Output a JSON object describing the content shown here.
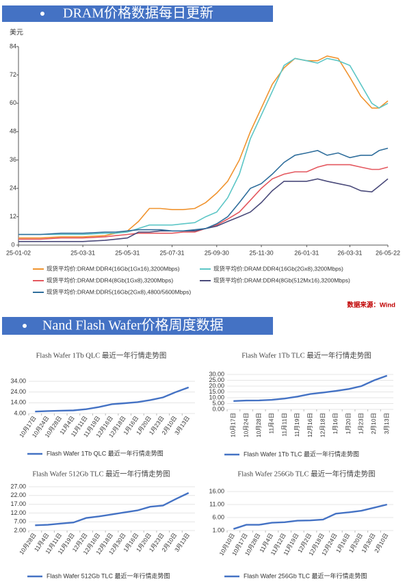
{
  "sections": [
    {
      "title": "DRAM价格数据每日更新"
    },
    {
      "title": "Nand Flash Wafer价格周度数据"
    }
  ],
  "chart_data": [
    {
      "type": "line",
      "y_label": "美元",
      "source": "数据来源：Wind",
      "x": [
        "25-01-02",
        "25-02-01",
        "25-03-01",
        "25-03-31",
        "25-04-30",
        "25-05-15",
        "25-05-31",
        "25-06-15",
        "25-06-30",
        "25-07-15",
        "25-07-31",
        "25-08-15",
        "25-08-31",
        "25-09-15",
        "25-09-30",
        "25-10-15",
        "25-10-31",
        "25-11-15",
        "25-11-30",
        "25-12-15",
        "25-12-31",
        "26-01-15",
        "26-01-31",
        "26-02-15",
        "26-02-28",
        "26-03-15",
        "26-03-31",
        "26-04-15",
        "26-04-30",
        "26-05-10",
        "26-05-22"
      ],
      "xlim": [
        "25-01-02",
        "26-05-22"
      ],
      "xticks": [
        "25-01-02",
        "25-03-31",
        "25-05-31",
        "25-07-31",
        "25-09-30",
        "25-11-30",
        "26-01-31",
        "26-03-31",
        "26-05-22"
      ],
      "ylim": [
        0,
        84
      ],
      "yticks": [
        0,
        12,
        24,
        36,
        48,
        60,
        72,
        84
      ],
      "series": [
        {
          "name": "现货平均价:DRAM:DDR4(16Gb(1Gx16),3200Mbps)",
          "color": "#f0932e",
          "values": [
            3,
            3,
            3.5,
            3.5,
            4,
            5,
            6,
            10,
            15.5,
            15.5,
            15,
            15,
            15.5,
            18,
            22,
            27,
            36,
            48,
            58,
            68,
            75,
            79,
            78,
            78,
            80,
            79,
            71,
            63,
            58,
            58,
            61
          ]
        },
        {
          "name": "现货平均价:DRAM:DDR4(16Gb(2Gx8),3200Mbps)",
          "color": "#5cc6c6",
          "values": [
            4.5,
            4.5,
            4.5,
            4.5,
            5,
            5,
            5.5,
            7,
            8.5,
            8.5,
            8.5,
            9,
            9.5,
            12,
            14,
            20,
            30,
            45,
            55,
            65,
            76,
            79,
            78,
            77,
            79,
            78,
            76,
            68,
            60,
            58,
            60
          ]
        },
        {
          "name": "现货平均价:DRAM:DDR4(8Gb(1Gx8),3200Mbps)",
          "color": "#e4575e",
          "values": [
            2.5,
            2.5,
            3,
            3,
            3.5,
            4,
            4.5,
            5,
            5,
            5,
            5,
            5.5,
            5.5,
            7,
            8.5,
            11,
            14,
            19,
            24,
            28,
            30,
            31,
            31,
            33,
            34,
            34,
            34,
            33,
            32,
            32,
            33
          ]
        },
        {
          "name": "现货平均价:DRAM:DDR4(8Gb(512Mx16),3200Mbps)",
          "color": "#4a4a7a",
          "values": [
            1.5,
            1.5,
            1.5,
            1.5,
            2,
            2.5,
            3,
            5.5,
            5.5,
            6,
            6,
            6,
            6,
            7,
            8,
            10,
            12,
            14,
            18,
            23,
            27,
            27,
            27,
            28,
            27,
            26,
            25,
            23,
            22.5,
            25,
            28
          ]
        },
        {
          "name": "现货平均价:DRAM:DDR5(16Gb(2Gx8),4800/5600Mbps)",
          "color": "#2f6e9c",
          "values": [
            4.5,
            4.5,
            5,
            5,
            5.5,
            5.5,
            6,
            6.5,
            6.5,
            6.5,
            6,
            6,
            6.5,
            7,
            9,
            12,
            18,
            24,
            26,
            30,
            35,
            38,
            39,
            40,
            38,
            39,
            37,
            38,
            38,
            40,
            41
          ]
        }
      ]
    },
    {
      "type": "line",
      "title": "Flash Wafer 1Tb QLC 最近一年行情走势图",
      "categories": [
        "10月17日",
        "10月24日",
        "10月28日",
        "11月4日",
        "11月11日",
        "11月19日",
        "12月16日",
        "12月18日",
        "1月16日",
        "1月20日",
        "1月23日",
        "2月10日",
        "3月13日"
      ],
      "ylim": [
        4,
        34
      ],
      "yticks": [
        {
          "value": 4,
          "label": "4.00"
        },
        {
          "value": 14,
          "label": "14.00"
        },
        {
          "value": 24,
          "label": "24.00"
        },
        {
          "value": 34,
          "label": "34.00"
        }
      ],
      "series": [
        {
          "name": "Flash Wafer 1Tb QLC 最近一年行情走势图",
          "color": "#4472c4",
          "values": [
            5.8,
            6.3,
            6.6,
            6.9,
            8,
            10,
            12.7,
            13.6,
            14.6,
            16.5,
            19,
            24,
            28.3
          ]
        }
      ]
    },
    {
      "type": "line",
      "title": "Flash Wafer 1Tb TLC 最近一年行情走势图",
      "categories": [
        "10月17日",
        "10月24日",
        "10月28日",
        "11月4日",
        "11月11日",
        "11月19日",
        "12月16日",
        "12月18日",
        "1月16日",
        "1月20日",
        "1月23日",
        "2月10日",
        "3月13日"
      ],
      "ylim": [
        0,
        30
      ],
      "yticks": [
        {
          "value": 0,
          "label": "0.00"
        },
        {
          "value": 5,
          "label": "5.00"
        },
        {
          "value": 10,
          "label": "10.00"
        },
        {
          "value": 15,
          "label": "15.00"
        },
        {
          "value": 20,
          "label": "20.00"
        },
        {
          "value": 25,
          "label": "25.00"
        },
        {
          "value": 30,
          "label": "30.00"
        }
      ],
      "series": [
        {
          "name": "Flash Wafer 1Tb TLC 最近一年行情走势图",
          "color": "#4472c4",
          "values": [
            7.2,
            7.6,
            7.7,
            8.2,
            9.3,
            11,
            13.2,
            14.5,
            15.8,
            17.5,
            20,
            25,
            29
          ]
        }
      ]
    },
    {
      "type": "line",
      "title": "Flash Wafer 512Gb TLC 最近一年行情走势图",
      "categories": [
        "10月28日",
        "11月4日",
        "11月11日",
        "11月19日",
        "12月2日",
        "12月16日",
        "12月18日",
        "12月30日",
        "1月16日",
        "1月20日",
        "1月23日",
        "2月10日",
        "3月13日"
      ],
      "ylim": [
        2,
        27
      ],
      "yticks": [
        {
          "value": 2,
          "label": "2.00"
        },
        {
          "value": 7,
          "label": "7.00"
        },
        {
          "value": 12,
          "label": "12.00"
        },
        {
          "value": 17,
          "label": "17.00"
        },
        {
          "value": 22,
          "label": "22.00"
        },
        {
          "value": 27,
          "label": "27.00"
        }
      ],
      "series": [
        {
          "name": "Flash Wafer 512Gb TLC 最近一年行情走势图",
          "color": "#4472c4",
          "values": [
            5,
            5.3,
            6,
            6.6,
            9.2,
            10.1,
            11.2,
            12.4,
            13.5,
            15.6,
            16.3,
            20,
            23.5
          ]
        }
      ]
    },
    {
      "type": "line",
      "title": "Flash Wafer 256Gb TLC 最近一年行情走势图",
      "categories": [
        "10月10日",
        "10月17日",
        "10月28日",
        "11月4日",
        "11月12日",
        "11月19日",
        "12月2日",
        "12月18日",
        "12月24日",
        "1月16日",
        "1月20日",
        "1月30日",
        "2月10日"
      ],
      "ylim": [
        1,
        16
      ],
      "yticks": [
        {
          "value": 1,
          "label": "1.00"
        },
        {
          "value": 6,
          "label": "6.00"
        },
        {
          "value": 11,
          "label": "11.00"
        },
        {
          "value": 16,
          "label": "16.00"
        }
      ],
      "series": [
        {
          "name": "Flash Wafer 256Gb TLC 最近一年行情走势图",
          "color": "#4472c4",
          "values": [
            1.6,
            3.2,
            3.2,
            4,
            4.2,
            4.8,
            4.9,
            5.2,
            7.5,
            8,
            8.6,
            9.8,
            11
          ]
        }
      ]
    }
  ]
}
